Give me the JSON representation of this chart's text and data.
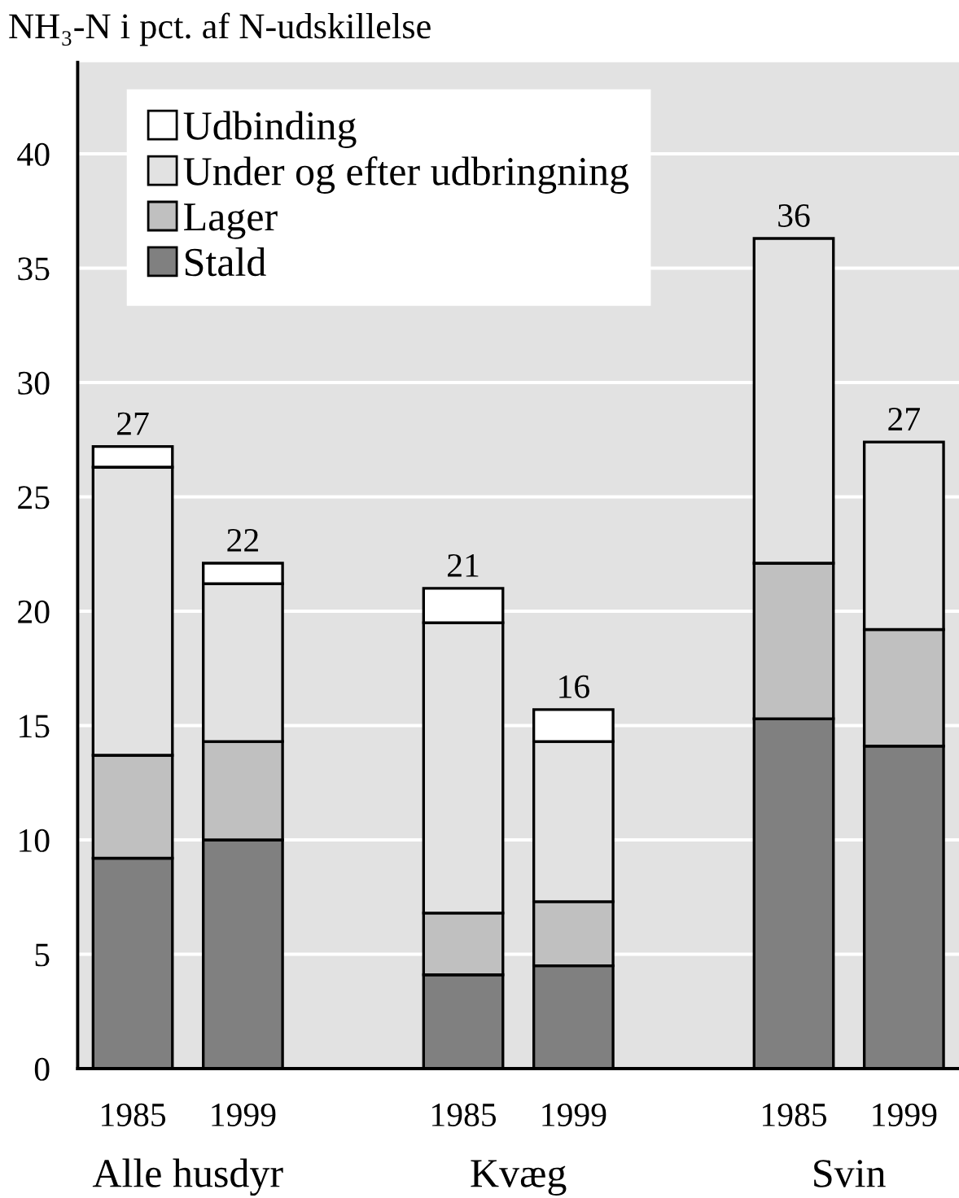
{
  "chart_data": {
    "type": "bar",
    "title": "NH₃-N i pct. af N-udskillelse",
    "categories": [
      "1985",
      "1999",
      null,
      "1985",
      "1999",
      null,
      "1985",
      "1999"
    ],
    "stacked": true,
    "series": [
      {
        "name": "Stald",
        "color": "#808080",
        "values": [
          9.2,
          10.0,
          null,
          4.1,
          4.5,
          null,
          15.3,
          14.1
        ]
      },
      {
        "name": "Lager",
        "color": "#c0c0c0",
        "values": [
          4.5,
          4.3,
          null,
          2.7,
          2.8,
          null,
          6.8,
          5.1
        ]
      },
      {
        "name": "Under og efter udbringning",
        "color": "#e2e2e2",
        "values": [
          12.6,
          6.9,
          null,
          12.7,
          7.0,
          null,
          14.2,
          8.2
        ]
      },
      {
        "name": "Udbinding",
        "color": "#ffffff",
        "values": [
          0.9,
          0.9,
          null,
          1.5,
          1.4,
          null,
          null,
          null
        ]
      }
    ],
    "totals": [
      "27",
      "22",
      null,
      "21",
      "16",
      null,
      "36",
      "27"
    ],
    "annotations": [
      "Alle husdyr",
      "Kvæg",
      "Svin"
    ],
    "ylim": [
      0,
      44
    ],
    "yticks": [
      0,
      5,
      10,
      15,
      20,
      25,
      30,
      35,
      40
    ],
    "grid": "y",
    "legend": "top left"
  }
}
